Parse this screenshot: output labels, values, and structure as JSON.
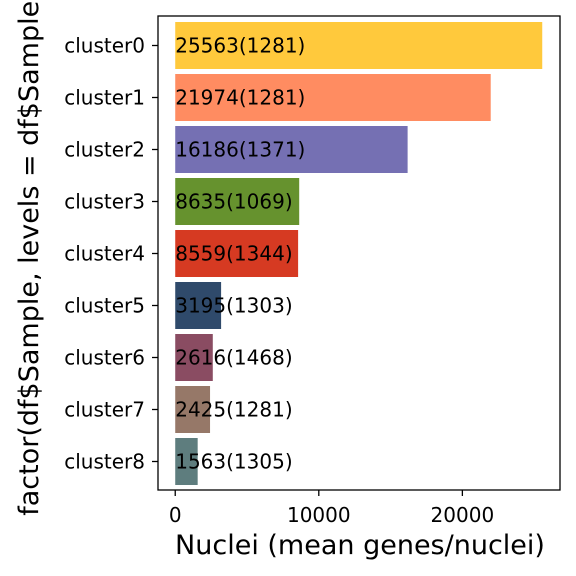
{
  "chart_data": {
    "type": "bar",
    "orientation": "horizontal",
    "title": "",
    "xlabel": "Nuclei (mean genes/nuclei)",
    "ylabel": "factor(df$Sample, levels = df$Sample)",
    "xlim": [
      -1200,
      26800
    ],
    "x_ticks": [
      0,
      10000,
      20000
    ],
    "grid": false,
    "categories": [
      "cluster0",
      "cluster1",
      "cluster2",
      "cluster3",
      "cluster4",
      "cluster5",
      "cluster6",
      "cluster7",
      "cluster8"
    ],
    "values": [
      25563,
      21974,
      16186,
      8635,
      8559,
      3195,
      2616,
      2425,
      1563
    ],
    "mean_genes": [
      1281,
      1281,
      1371,
      1069,
      1344,
      1303,
      1468,
      1281,
      1305
    ],
    "bar_labels": [
      "25563(1281)",
      "21974(1281)",
      "16186(1371)",
      "8635(1069)",
      "8559(1344)",
      "3195(1303)",
      "2616(1468)",
      "2425(1281)",
      "1563(1305)"
    ],
    "colors": [
      "#FFC93C",
      "#FF8C61",
      "#7570B3",
      "#66922E",
      "#D63A22",
      "#2F4A6B",
      "#8A4C62",
      "#967868",
      "#5E7D7E"
    ]
  }
}
